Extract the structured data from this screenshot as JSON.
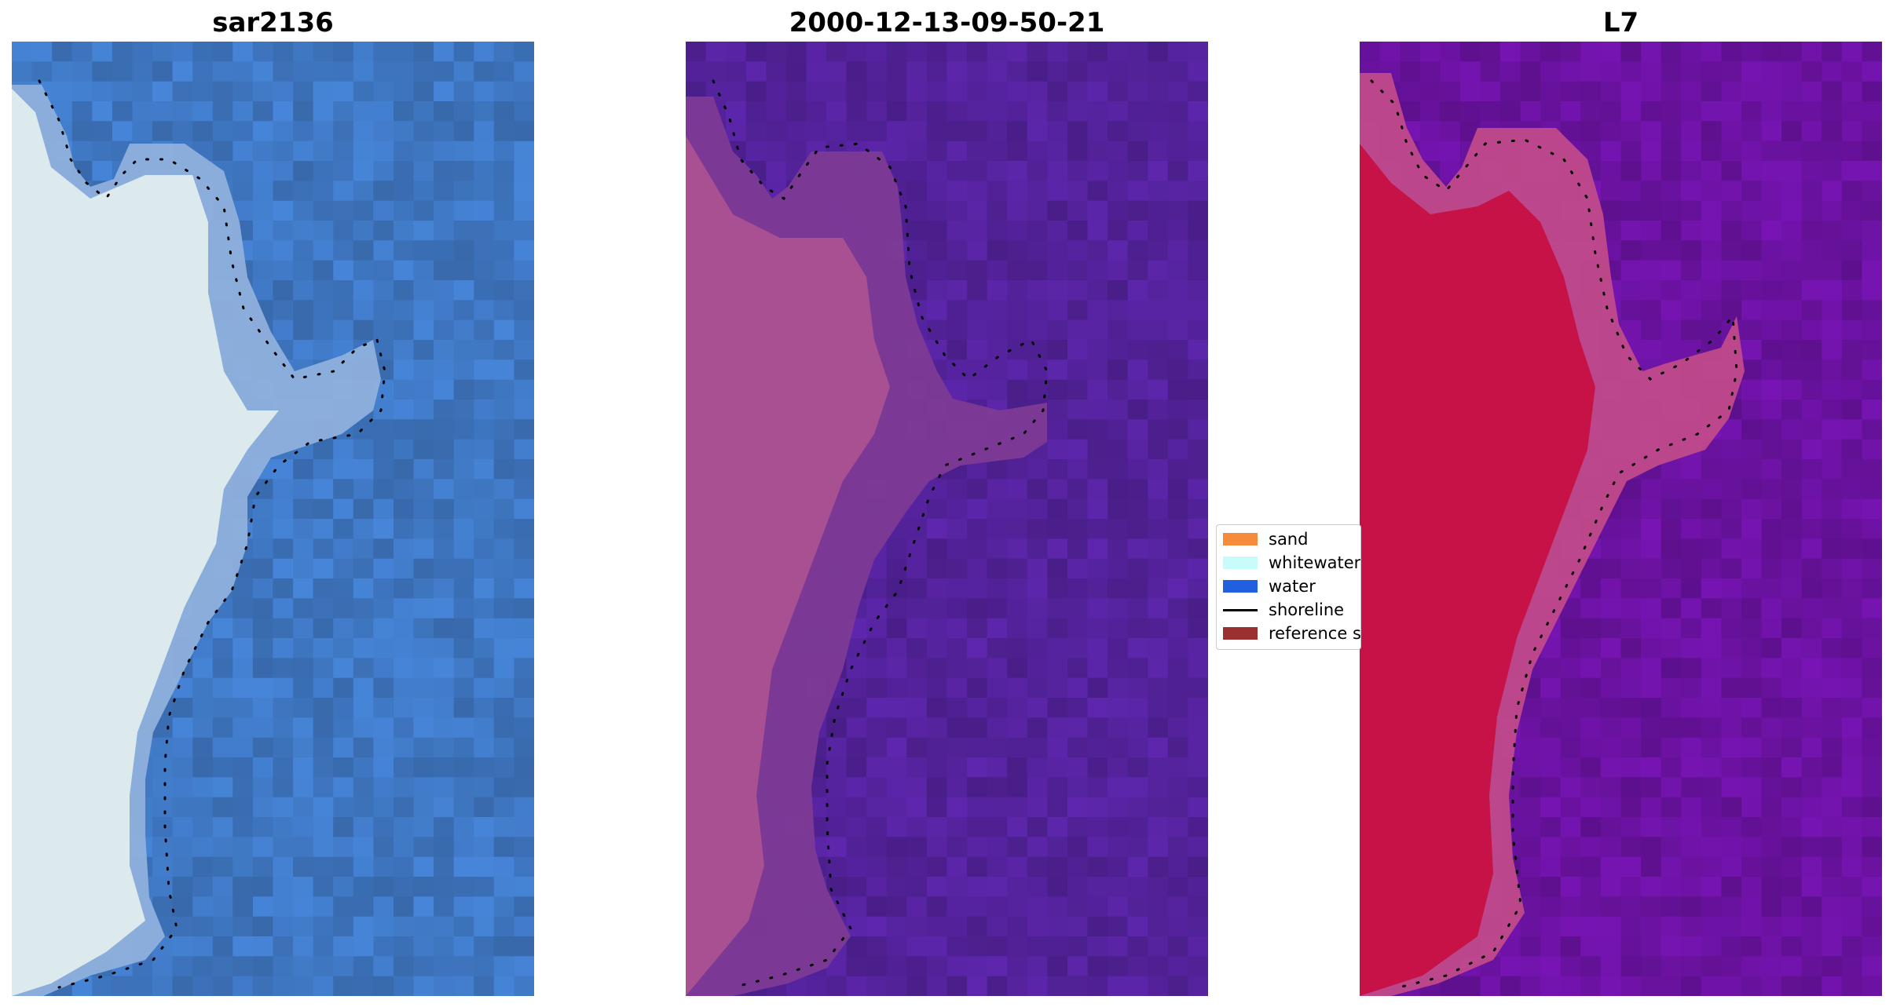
{
  "panels": [
    {
      "title": "sar2136",
      "colors": {
        "base": "#3f77c2",
        "land": "#eaf5f0",
        "mid": "#8fb0dc"
      }
    },
    {
      "title": "2000-12-13-09-50-21",
      "colors": {
        "base": "#53229a",
        "land": "#b05590",
        "mid": "#7d3a95"
      }
    },
    {
      "title": "L7",
      "colors": {
        "base": "#6a12a0",
        "land": "#c8093a",
        "mid": "#c14a8a"
      }
    }
  ],
  "legend": {
    "items": [
      {
        "label": "sand",
        "color": "#f68b3c",
        "kind": "patch"
      },
      {
        "label": "whitewater",
        "color": "#c8fcfa",
        "kind": "patch"
      },
      {
        "label": "water",
        "color": "#1f5fe0",
        "kind": "patch"
      },
      {
        "label": "shoreline",
        "color": "#000000",
        "kind": "line"
      },
      {
        "label": "reference shoreline buffer",
        "color": "#9a3030",
        "kind": "patch"
      }
    ]
  }
}
